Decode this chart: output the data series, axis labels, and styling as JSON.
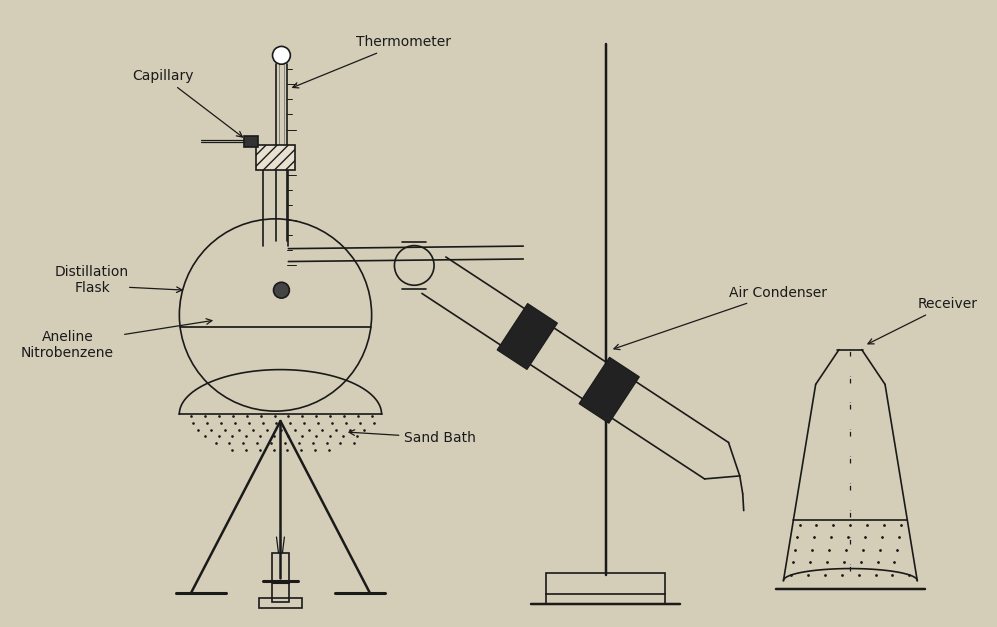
{
  "bg_color": "#d4cdb8",
  "line_color": "#1a1a1a",
  "labels": {
    "capillary": "Capillary",
    "thermometer": "Thermometer",
    "distillation_flask": "Distillation\nFlask",
    "aneline": "Aneline\nNitrobenzene",
    "sand_bath": "Sand Bath",
    "air_condenser": "Air Condenser",
    "receiver": "Receiver"
  },
  "label_fontsize": 10,
  "fig_width": 9.97,
  "fig_height": 6.27,
  "dpi": 100
}
